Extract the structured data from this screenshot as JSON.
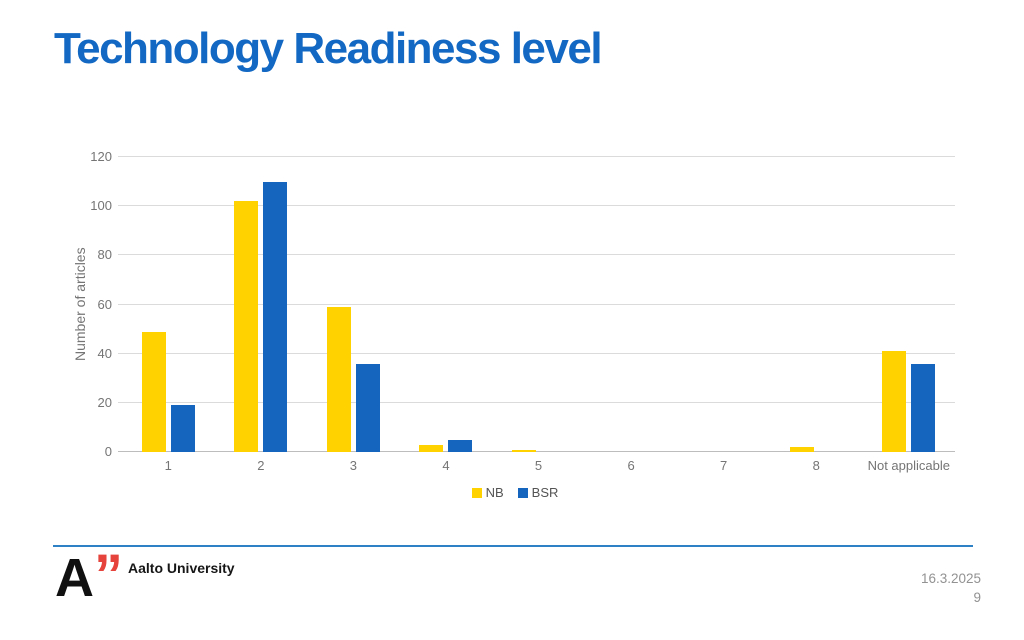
{
  "slide": {
    "title": "Technology Readiness level"
  },
  "chart_data": {
    "type": "bar",
    "categories": [
      "1",
      "2",
      "3",
      "4",
      "5",
      "6",
      "7",
      "8",
      "Not applicable"
    ],
    "series": [
      {
        "name": "NB",
        "color": "#FFD200",
        "values": [
          49,
          102,
          59,
          3,
          1,
          0,
          0,
          2,
          41
        ]
      },
      {
        "name": "BSR",
        "color": "#1565BE",
        "values": [
          19,
          110,
          36,
          5,
          0,
          0,
          0,
          0,
          36
        ]
      }
    ],
    "title": "",
    "xlabel": "",
    "ylabel": "Number of articles",
    "ylim": [
      0,
      120
    ],
    "yticks": [
      0,
      20,
      40,
      60,
      80,
      100,
      120
    ],
    "grid": true,
    "legend_position": "bottom"
  },
  "footer": {
    "logo_letter": "A",
    "logo_quote": "”",
    "logo_text": "Aalto University",
    "date": "16.3.2025",
    "page_number": "9"
  },
  "colors": {
    "title_blue": "#1268C3",
    "nb_yellow": "#FFD200",
    "bsr_blue": "#1565BE",
    "divider_blue": "#2E81C4",
    "logo_red": "#E5433B",
    "axis_text": "#757575",
    "legend_text": "#545454",
    "gridline": "#DBDBDB",
    "footer_text": "#929292"
  }
}
